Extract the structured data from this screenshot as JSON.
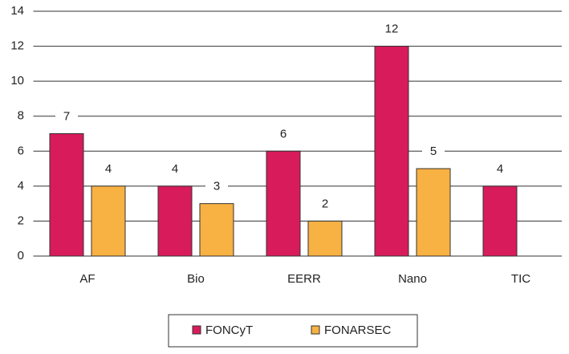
{
  "chart_data": {
    "type": "bar",
    "categories": [
      "AF",
      "Bio",
      "EERR",
      "Nano",
      "TIC"
    ],
    "series": [
      {
        "name": "FONCyT",
        "color": "#d81b5b",
        "values": [
          7,
          4,
          6,
          12,
          4
        ]
      },
      {
        "name": "FONARSEC",
        "color": "#f8b143",
        "values": [
          4,
          3,
          2,
          5,
          null
        ]
      }
    ],
    "ylim": [
      0,
      14
    ],
    "yticks": [
      0,
      2,
      4,
      6,
      8,
      10,
      12,
      14
    ],
    "grid": true,
    "legend": "bottom"
  }
}
